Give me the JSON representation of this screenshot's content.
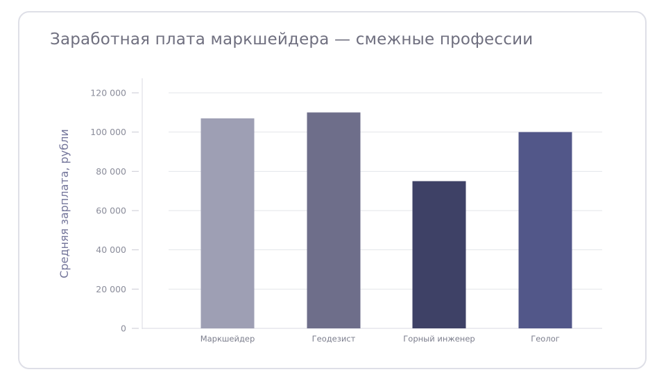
{
  "chart_data": {
    "type": "bar",
    "title": "Заработная плата маркшейдера — смежные профессии",
    "xlabel": "",
    "ylabel": "Средняя зарплата, рубли",
    "ylim": [
      0,
      120000
    ],
    "yticks": [
      0,
      20000,
      40000,
      60000,
      80000,
      100000,
      120000
    ],
    "ytick_labels": [
      "0",
      "20 000",
      "40 000",
      "60 000",
      "80 000",
      "100 000",
      "120 000"
    ],
    "categories": [
      "Маркшейдер",
      "Геодезист",
      "Горный инженер",
      "Геолог"
    ],
    "values": [
      107000,
      110000,
      75000,
      100000
    ],
    "colors": [
      "#9e9fb4",
      "#6e6e8a",
      "#3e4166",
      "#525789"
    ],
    "grid": true,
    "legend": "none"
  }
}
